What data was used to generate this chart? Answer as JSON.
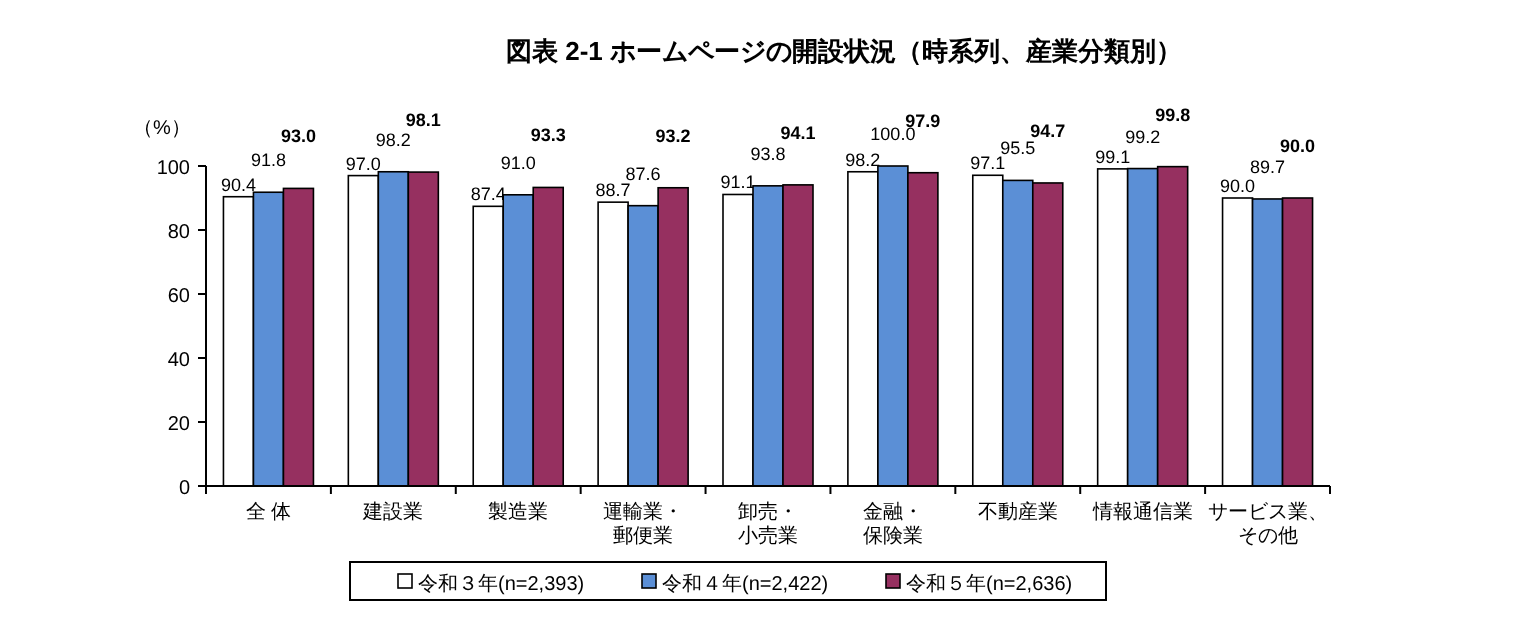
{
  "chart_data": {
    "type": "bar",
    "title": "図表 2-1 ホームページの開設状況（時系列、産業分類別）",
    "ylabel": "（%）",
    "categories": [
      "全 体",
      "建設業",
      "製造業",
      "運輸業・郵便業",
      "卸売・小売業",
      "金融・保険業",
      "不動産業",
      "情報通信業",
      "サービス業、その他"
    ],
    "series": [
      {
        "name": "令和３年(n=2,393)",
        "color": "#ffffff",
        "values": [
          90.4,
          97.0,
          87.4,
          88.7,
          91.1,
          98.2,
          97.1,
          99.1,
          90.0
        ],
        "value_labels": [
          "90.4",
          "97.0",
          "87.4",
          "88.7",
          "91.1",
          "98.2",
          "97.1",
          "99.1",
          "90.0"
        ]
      },
      {
        "name": "令和４年(n=2,422)",
        "color": "#5b8fd6",
        "values": [
          91.8,
          98.2,
          91.0,
          87.6,
          93.8,
          100.0,
          95.5,
          99.2,
          89.7
        ],
        "value_labels": [
          "91.8",
          "98.2",
          "91.0",
          "87.6",
          "93.8",
          "100.0",
          "95.5",
          "99.2",
          "89.7"
        ]
      },
      {
        "name": "令和５年(n=2,636)",
        "color": "#963060",
        "values": [
          93.0,
          98.1,
          93.3,
          93.2,
          94.1,
          97.9,
          94.7,
          99.8,
          90.0
        ],
        "value_labels": [
          "93.0",
          "98.1",
          "93.3",
          "93.2",
          "94.1",
          "97.9",
          "94.7",
          "99.8",
          "90.0"
        ]
      }
    ],
    "ylim": [
      0,
      100
    ],
    "yticks": [
      0,
      20,
      40,
      60,
      80,
      100
    ],
    "grid": false,
    "legend": "bottom"
  }
}
